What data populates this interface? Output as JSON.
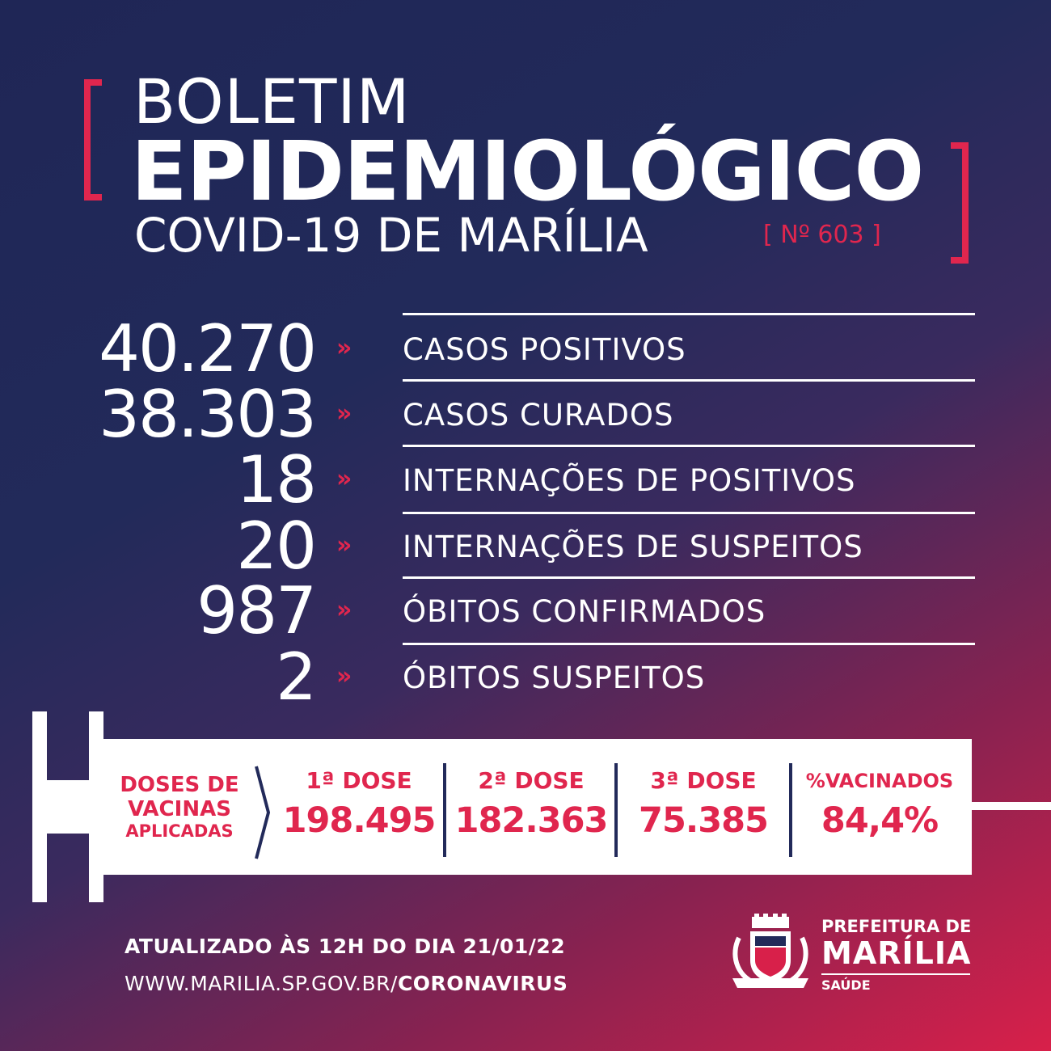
{
  "header": {
    "title_line1": "BOLETIM",
    "title_line2": "EPIDEMIOLÓGICO",
    "title_line3": "COVID-19 DE MARÍLIA",
    "bulletin_number": "[ Nº 603 ]"
  },
  "stats": [
    {
      "value": "40.270",
      "label": "CASOS POSITIVOS"
    },
    {
      "value": "38.303",
      "label": "CASOS CURADOS"
    },
    {
      "value": "18",
      "label": "INTERNAÇÕES DE POSITIVOS"
    },
    {
      "value": "20",
      "label": "INTERNAÇÕES DE SUSPEITOS"
    },
    {
      "value": "987",
      "label": "ÓBITOS CONFIRMADOS"
    },
    {
      "value": "2",
      "label": "ÓBITOS SUSPEITOS"
    }
  ],
  "arrow_glyph": "»",
  "vaccines": {
    "heading_line1": "DOSES DE",
    "heading_line2": "VACINAS",
    "heading_line3": "APLICADAS",
    "columns": [
      {
        "label": "1ª DOSE",
        "value": "198.495"
      },
      {
        "label": "2ª DOSE",
        "value": "182.363"
      },
      {
        "label": "3ª DOSE",
        "value": "75.385"
      },
      {
        "label": "%VACINADOS",
        "value": "84,4%"
      }
    ]
  },
  "footer": {
    "updated": "ATUALIZADO ÀS 12H DO DIA 21/01/22",
    "url_prefix": "WWW.MARILIA.SP.GOV.BR/",
    "url_suffix": "CORONAVIRUS"
  },
  "logo": {
    "line1": "PREFEITURA DE",
    "line2": "MARÍLIA",
    "line3": "SAÚDE"
  },
  "colors": {
    "accent": "#e0264e",
    "navy": "#222a5a",
    "white": "#ffffff"
  }
}
